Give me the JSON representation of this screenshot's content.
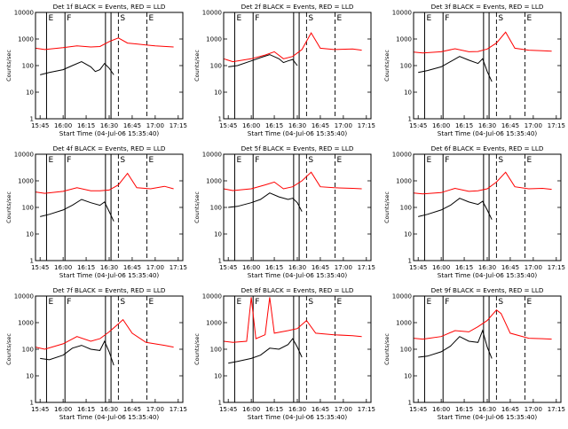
{
  "colors": {
    "events": "#000000",
    "lld": "#ff0000",
    "axis": "#000000"
  },
  "chart_data": [
    {
      "type": "line",
      "title": "Det 1f BLACK = Events, RED = LLD",
      "xlabel": "Start Time (04-Jul-06 15:35:40)",
      "ylabel": "Counts/sec",
      "markers": [
        "E",
        "F",
        "S",
        "E"
      ],
      "events": [
        [
          15.75,
          45
        ],
        [
          15.85,
          55
        ],
        [
          16.0,
          70
        ],
        [
          16.1,
          100
        ],
        [
          16.2,
          140
        ],
        [
          16.3,
          90
        ],
        [
          16.35,
          60
        ],
        [
          16.4,
          70
        ],
        [
          16.45,
          120
        ],
        [
          16.5,
          80
        ],
        [
          16.55,
          45
        ]
      ],
      "lld": [
        [
          15.7,
          450
        ],
        [
          15.8,
          400
        ],
        [
          16.0,
          470
        ],
        [
          16.15,
          550
        ],
        [
          16.3,
          500
        ],
        [
          16.4,
          520
        ],
        [
          16.5,
          800
        ],
        [
          16.6,
          1100
        ],
        [
          16.7,
          700
        ],
        [
          16.8,
          650
        ],
        [
          16.9,
          600
        ],
        [
          17.0,
          550
        ],
        [
          17.2,
          500
        ]
      ]
    },
    {
      "type": "line",
      "title": "Det 2f BLACK = Events, RED = LLD",
      "xlabel": "Start Time (04-Jul-06 15:35:40)",
      "ylabel": "Counts/sec",
      "markers": [
        "E",
        "F",
        "S",
        "E"
      ],
      "events": [
        [
          15.75,
          90
        ],
        [
          15.85,
          100
        ],
        [
          16.0,
          150
        ],
        [
          16.1,
          200
        ],
        [
          16.2,
          260
        ],
        [
          16.3,
          180
        ],
        [
          16.35,
          130
        ],
        [
          16.4,
          150
        ],
        [
          16.45,
          170
        ],
        [
          16.5,
          100
        ]
      ],
      "lld": [
        [
          15.7,
          180
        ],
        [
          15.8,
          140
        ],
        [
          16.0,
          180
        ],
        [
          16.15,
          250
        ],
        [
          16.25,
          330
        ],
        [
          16.35,
          180
        ],
        [
          16.45,
          220
        ],
        [
          16.55,
          400
        ],
        [
          16.65,
          1700
        ],
        [
          16.75,
          450
        ],
        [
          16.9,
          400
        ],
        [
          17.1,
          420
        ],
        [
          17.2,
          380
        ]
      ]
    },
    {
      "type": "line",
      "title": "Det 3f BLACK = Events, RED = LLD",
      "xlabel": "Start Time (04-Jul-06 15:35:40)",
      "ylabel": "Counts/sec",
      "markers": [
        "E",
        "F",
        "S",
        "E"
      ],
      "events": [
        [
          15.75,
          55
        ],
        [
          15.85,
          65
        ],
        [
          16.0,
          90
        ],
        [
          16.1,
          140
        ],
        [
          16.2,
          220
        ],
        [
          16.3,
          160
        ],
        [
          16.4,
          120
        ],
        [
          16.45,
          180
        ],
        [
          16.5,
          60
        ],
        [
          16.55,
          25
        ]
      ],
      "lld": [
        [
          15.7,
          320
        ],
        [
          15.8,
          300
        ],
        [
          16.0,
          330
        ],
        [
          16.15,
          430
        ],
        [
          16.3,
          330
        ],
        [
          16.4,
          340
        ],
        [
          16.5,
          420
        ],
        [
          16.6,
          700
        ],
        [
          16.7,
          1800
        ],
        [
          16.8,
          450
        ],
        [
          16.95,
          380
        ],
        [
          17.1,
          360
        ],
        [
          17.2,
          350
        ]
      ]
    },
    {
      "type": "line",
      "title": "Det 4f BLACK = Events, RED = LLD",
      "xlabel": "Start Time (04-Jul-06 15:35:40)",
      "ylabel": "Counts/sec",
      "markers": [
        "E",
        "F",
        "S",
        "E"
      ],
      "events": [
        [
          15.75,
          45
        ],
        [
          15.85,
          55
        ],
        [
          16.0,
          80
        ],
        [
          16.1,
          120
        ],
        [
          16.2,
          200
        ],
        [
          16.3,
          150
        ],
        [
          16.4,
          120
        ],
        [
          16.45,
          160
        ],
        [
          16.5,
          70
        ],
        [
          16.55,
          30
        ]
      ],
      "lld": [
        [
          15.7,
          380
        ],
        [
          15.8,
          340
        ],
        [
          16.0,
          400
        ],
        [
          16.15,
          550
        ],
        [
          16.3,
          420
        ],
        [
          16.4,
          420
        ],
        [
          16.5,
          450
        ],
        [
          16.6,
          700
        ],
        [
          16.7,
          1900
        ],
        [
          16.8,
          550
        ],
        [
          16.95,
          500
        ],
        [
          17.1,
          620
        ],
        [
          17.2,
          500
        ]
      ]
    },
    {
      "type": "line",
      "title": "Det 5f BLACK = Events, RED = LLD",
      "xlabel": "Start Time (04-Jul-06 15:35:40)",
      "ylabel": "Counts/sec",
      "markers": [
        "E",
        "F",
        "S",
        "E"
      ],
      "events": [
        [
          15.75,
          100
        ],
        [
          15.85,
          110
        ],
        [
          16.0,
          150
        ],
        [
          16.1,
          200
        ],
        [
          16.2,
          350
        ],
        [
          16.3,
          250
        ],
        [
          16.4,
          200
        ],
        [
          16.45,
          220
        ],
        [
          16.5,
          150
        ],
        [
          16.55,
          70
        ]
      ],
      "lld": [
        [
          15.7,
          500
        ],
        [
          15.8,
          430
        ],
        [
          16.0,
          500
        ],
        [
          16.15,
          700
        ],
        [
          16.25,
          900
        ],
        [
          16.35,
          500
        ],
        [
          16.45,
          600
        ],
        [
          16.55,
          1000
        ],
        [
          16.65,
          2100
        ],
        [
          16.75,
          600
        ],
        [
          16.9,
          550
        ],
        [
          17.1,
          520
        ],
        [
          17.2,
          500
        ]
      ]
    },
    {
      "type": "line",
      "title": "Det 6f BLACK = Events, RED = LLD",
      "xlabel": "Start Time (04-Jul-06 15:35:40)",
      "ylabel": "Counts/sec",
      "markers": [
        "E",
        "F",
        "S",
        "E"
      ],
      "events": [
        [
          15.75,
          45
        ],
        [
          15.85,
          55
        ],
        [
          16.0,
          80
        ],
        [
          16.1,
          120
        ],
        [
          16.2,
          220
        ],
        [
          16.3,
          160
        ],
        [
          16.4,
          130
        ],
        [
          16.45,
          170
        ],
        [
          16.5,
          80
        ],
        [
          16.55,
          35
        ]
      ],
      "lld": [
        [
          15.7,
          350
        ],
        [
          15.8,
          320
        ],
        [
          16.0,
          360
        ],
        [
          16.15,
          520
        ],
        [
          16.3,
          400
        ],
        [
          16.4,
          420
        ],
        [
          16.5,
          500
        ],
        [
          16.6,
          900
        ],
        [
          16.7,
          2100
        ],
        [
          16.8,
          600
        ],
        [
          16.95,
          500
        ],
        [
          17.1,
          520
        ],
        [
          17.2,
          480
        ]
      ]
    },
    {
      "type": "line",
      "title": "Det 7f BLACK = Events, RED = LLD",
      "xlabel": "Start Time (04-Jul-06 15:35:40)",
      "ylabel": "Counts/sec",
      "markers": [
        "E",
        "F",
        "S",
        "E"
      ],
      "events": [
        [
          15.75,
          45
        ],
        [
          15.85,
          40
        ],
        [
          16.0,
          60
        ],
        [
          16.1,
          110
        ],
        [
          16.2,
          140
        ],
        [
          16.3,
          100
        ],
        [
          16.4,
          90
        ],
        [
          16.45,
          200
        ],
        [
          16.5,
          80
        ],
        [
          16.55,
          25
        ]
      ],
      "lld": [
        [
          15.7,
          120
        ],
        [
          15.8,
          100
        ],
        [
          16.0,
          160
        ],
        [
          16.15,
          300
        ],
        [
          16.3,
          200
        ],
        [
          16.4,
          250
        ],
        [
          16.5,
          450
        ],
        [
          16.6,
          900
        ],
        [
          16.65,
          1300
        ],
        [
          16.75,
          400
        ],
        [
          16.9,
          180
        ],
        [
          17.1,
          140
        ],
        [
          17.2,
          120
        ]
      ]
    },
    {
      "type": "line",
      "title": "Det 8f BLACK = Events, RED = LLD",
      "xlabel": "Start Time (04-Jul-06 15:35:40)",
      "ylabel": "Counts/sec",
      "markers": [
        "E",
        "F",
        "S",
        "E"
      ],
      "events": [
        [
          15.75,
          30
        ],
        [
          15.85,
          35
        ],
        [
          16.0,
          45
        ],
        [
          16.1,
          60
        ],
        [
          16.2,
          110
        ],
        [
          16.3,
          100
        ],
        [
          16.4,
          150
        ],
        [
          16.45,
          250
        ],
        [
          16.5,
          120
        ],
        [
          16.55,
          50
        ]
      ],
      "lld": [
        [
          15.7,
          200
        ],
        [
          15.8,
          180
        ],
        [
          15.95,
          200
        ],
        [
          16.0,
          9000
        ],
        [
          16.05,
          250
        ],
        [
          16.15,
          350
        ],
        [
          16.2,
          9000
        ],
        [
          16.25,
          400
        ],
        [
          16.4,
          500
        ],
        [
          16.5,
          600
        ],
        [
          16.6,
          1200
        ],
        [
          16.7,
          400
        ],
        [
          16.9,
          350
        ],
        [
          17.1,
          320
        ],
        [
          17.2,
          300
        ]
      ]
    },
    {
      "type": "line",
      "title": "Det 9f BLACK = Events, RED = LLD",
      "xlabel": "Start Time (04-Jul-06 15:35:40)",
      "ylabel": "Counts/sec",
      "markers": [
        "E",
        "F",
        "S",
        "E"
      ],
      "events": [
        [
          15.75,
          50
        ],
        [
          15.85,
          55
        ],
        [
          16.0,
          80
        ],
        [
          16.1,
          130
        ],
        [
          16.2,
          300
        ],
        [
          16.3,
          200
        ],
        [
          16.4,
          180
        ],
        [
          16.45,
          500
        ],
        [
          16.5,
          120
        ],
        [
          16.55,
          45
        ]
      ],
      "lld": [
        [
          15.7,
          260
        ],
        [
          15.8,
          240
        ],
        [
          16.0,
          300
        ],
        [
          16.15,
          500
        ],
        [
          16.3,
          450
        ],
        [
          16.4,
          700
        ],
        [
          16.5,
          1200
        ],
        [
          16.6,
          3000
        ],
        [
          16.65,
          2200
        ],
        [
          16.75,
          400
        ],
        [
          16.95,
          260
        ],
        [
          17.1,
          250
        ],
        [
          17.2,
          240
        ]
      ]
    }
  ],
  "axes": {
    "x_range": [
      15.7,
      17.3
    ],
    "x_ticks": [
      {
        "value": 15.75,
        "label": "15:45"
      },
      {
        "value": 16.0,
        "label": "16:00"
      },
      {
        "value": 16.25,
        "label": "16:15"
      },
      {
        "value": 16.5,
        "label": "16:30"
      },
      {
        "value": 16.75,
        "label": "16:45"
      },
      {
        "value": 17.0,
        "label": "17:00"
      },
      {
        "value": 17.25,
        "label": "17:15"
      }
    ],
    "y_scale": "log",
    "y_range": [
      1,
      10000
    ],
    "y_ticks": [
      {
        "value": 1,
        "label": "1"
      },
      {
        "value": 10,
        "label": "10"
      },
      {
        "value": 100,
        "label": "100"
      },
      {
        "value": 1000,
        "label": "1000"
      },
      {
        "value": 10000,
        "label": "10000"
      }
    ]
  },
  "vlines": [
    {
      "x": 15.82,
      "style": "solid",
      "label": "E"
    },
    {
      "x": 16.02,
      "style": "solid",
      "label": "F"
    },
    {
      "x": 16.46,
      "style": "solid",
      "label": ""
    },
    {
      "x": 16.52,
      "style": "solid",
      "label": ""
    },
    {
      "x": 16.6,
      "style": "dashed",
      "label": "S"
    },
    {
      "x": 16.91,
      "style": "dashed",
      "label": "E"
    }
  ]
}
